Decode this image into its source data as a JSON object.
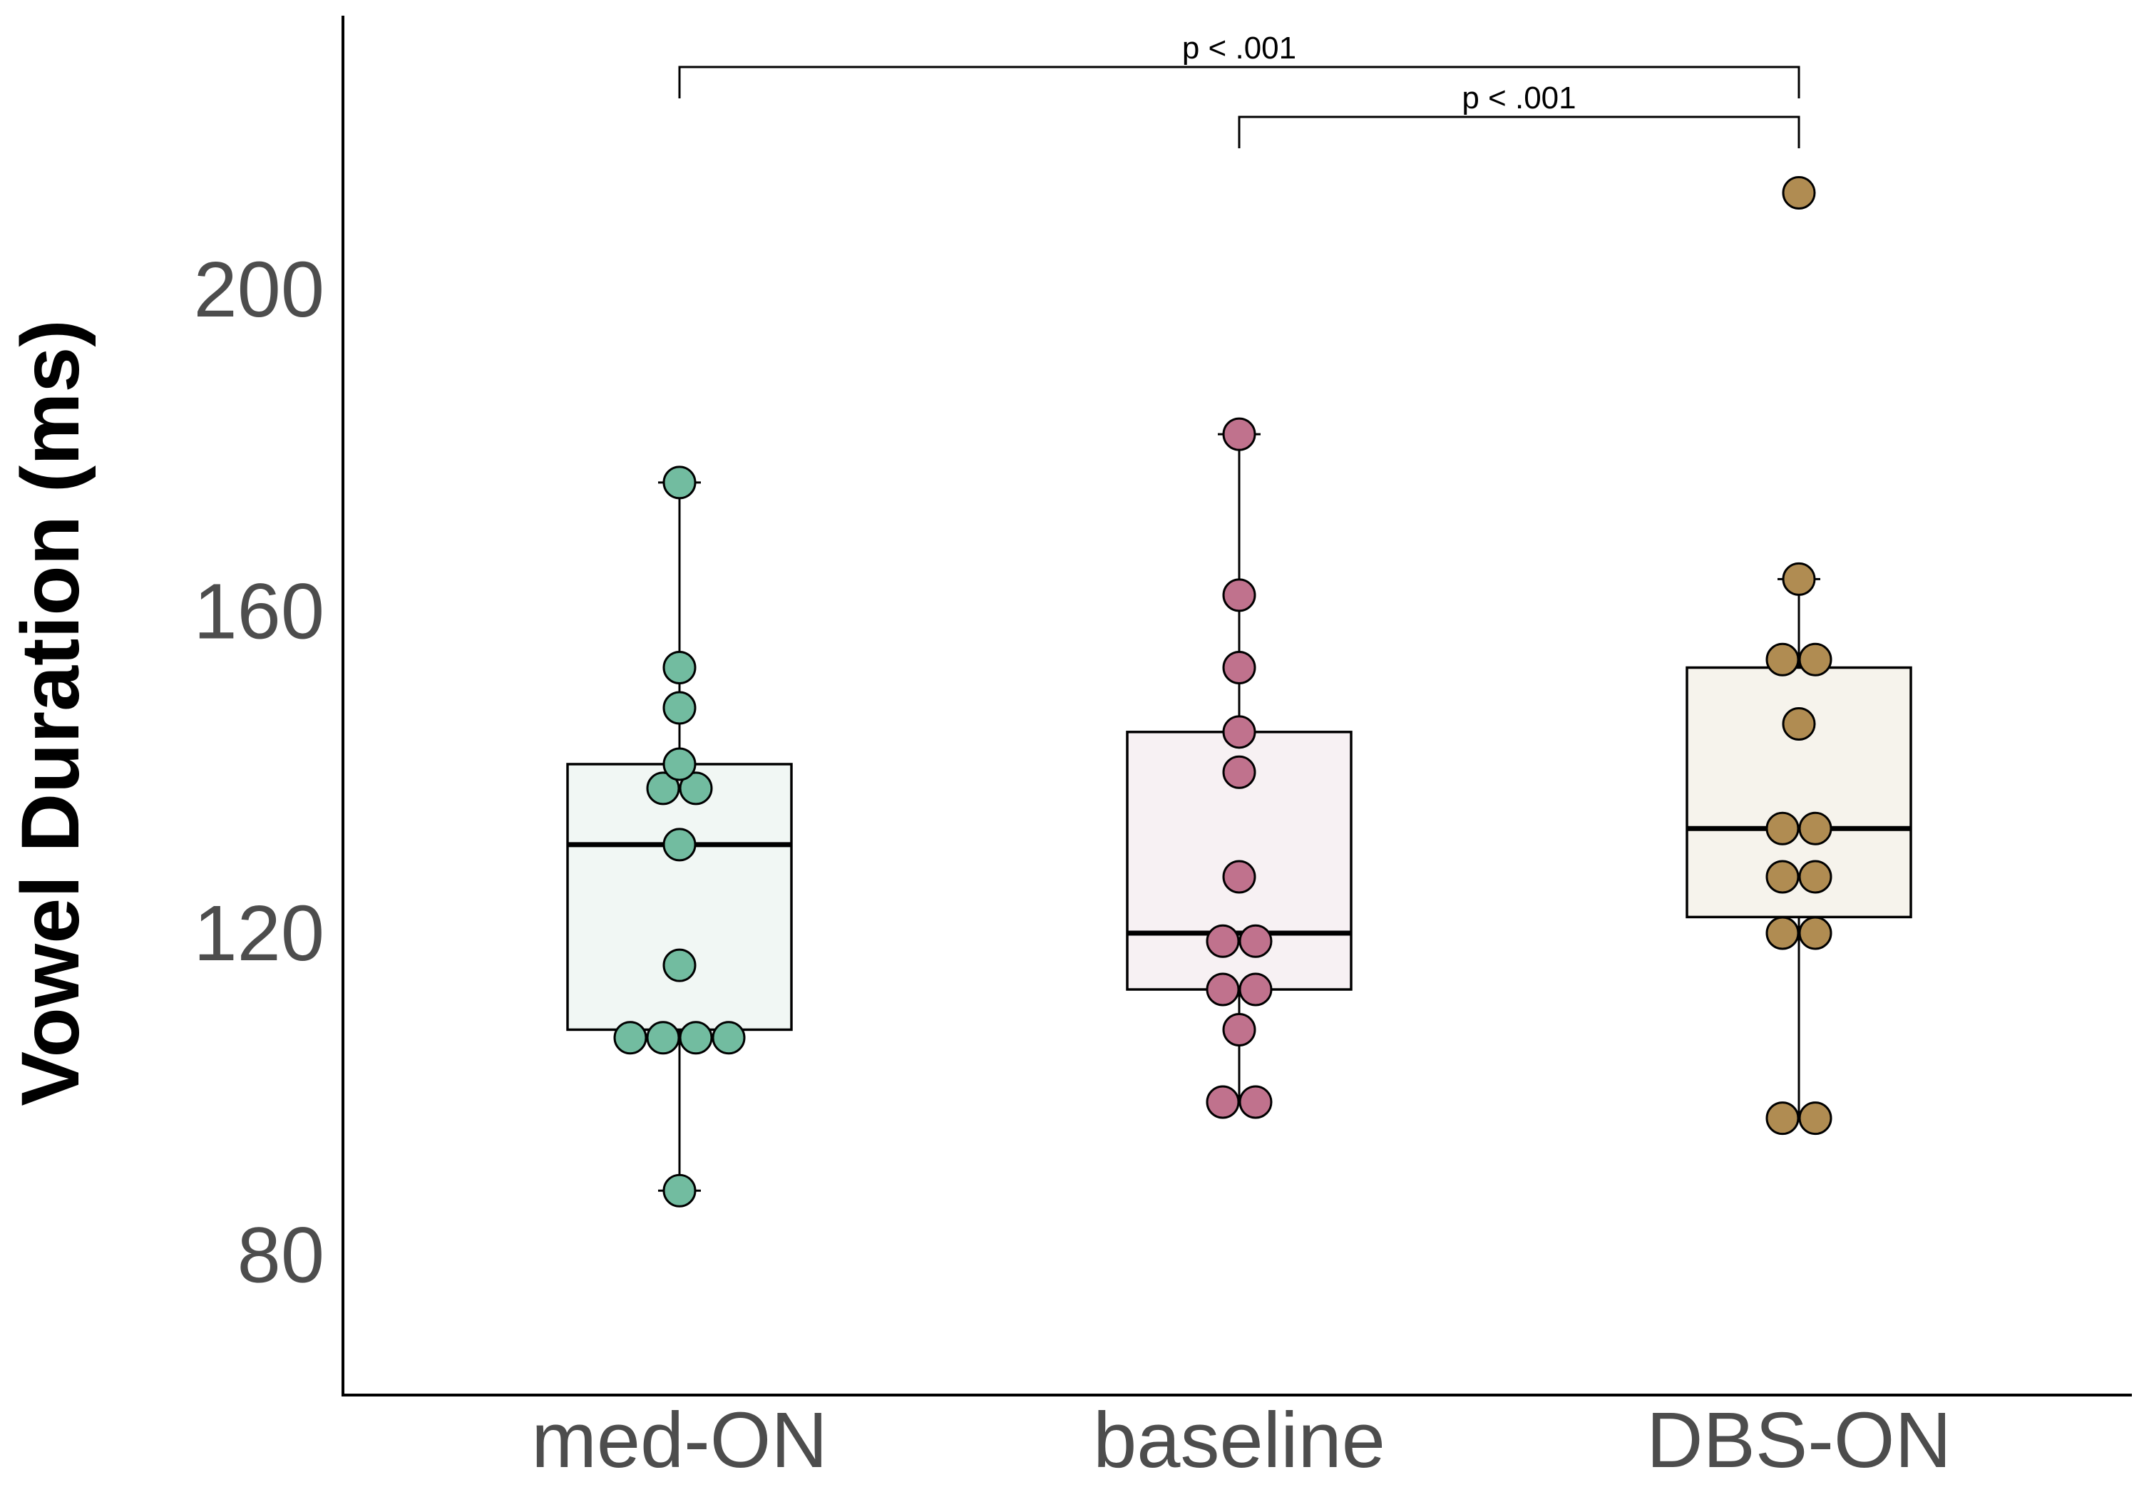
{
  "chart_data": {
    "type": "box",
    "title": "",
    "xlabel": "",
    "ylabel": "Vowel Duration (ms)",
    "ylim": [
      62,
      232
    ],
    "yticks": [
      80,
      120,
      160,
      200
    ],
    "grid": false,
    "legend": "none",
    "categories": [
      "med-ON",
      "baseline",
      "DBS-ON"
    ],
    "groups": [
      {
        "name": "med-ON",
        "color": "#72bca0",
        "box_fill": "#f1f7f4",
        "min": 88,
        "q1": 108,
        "median": 131,
        "q3": 141,
        "max": 176,
        "points": [
          88,
          107,
          107,
          107,
          107,
          116,
          131,
          138,
          138,
          141,
          148,
          153,
          176
        ]
      },
      {
        "name": "baseline",
        "color": "#c0728d",
        "box_fill": "#f7f1f3",
        "min": 99,
        "q1": 113,
        "median": 120,
        "q3": 145,
        "max": 182,
        "points": [
          99,
          99,
          108,
          113,
          113,
          119,
          119,
          127,
          140,
          145,
          153,
          162,
          182
        ]
      },
      {
        "name": "DBS-ON",
        "color": "#b08c52",
        "box_fill": "#f6f3ec",
        "min": 97,
        "q1": 122,
        "median": 133,
        "q3": 153,
        "max": 164,
        "points": [
          97,
          97,
          120,
          120,
          127,
          127,
          133,
          133,
          146,
          154,
          154,
          164,
          212
        ],
        "outliers": [
          212
        ]
      }
    ],
    "comparisons": [
      {
        "from": "med-ON",
        "to": "DBS-ON",
        "label": "p < .001"
      },
      {
        "from": "baseline",
        "to": "DBS-ON",
        "label": "p < .001"
      }
    ]
  }
}
